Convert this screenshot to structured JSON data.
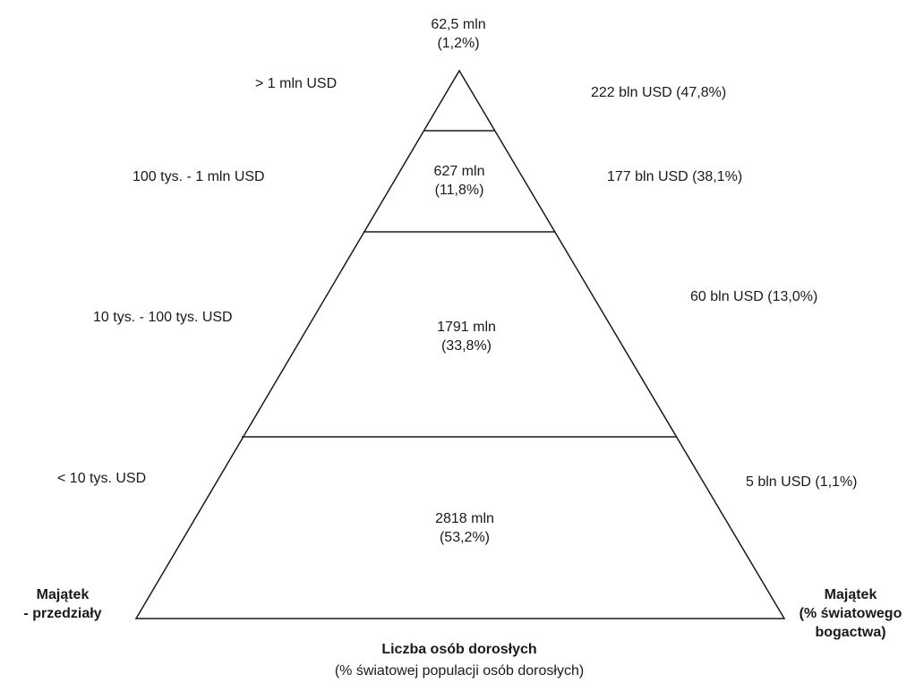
{
  "pyramid": {
    "tiers": [
      {
        "range": "> 1 mln USD",
        "people": "62,5 mln",
        "people_pct": "(1,2%)",
        "wealth": "222 bln USD (47,8%)"
      },
      {
        "range": "100 tys. - 1 mln USD",
        "people": "627 mln",
        "people_pct": "(11,8%)",
        "wealth": "177 bln USD (38,1%)"
      },
      {
        "range": "10 tys. - 100 tys. USD",
        "people": "1791 mln",
        "people_pct": "(33,8%)",
        "wealth": "60 bln USD (13,0%)"
      },
      {
        "range": "< 10 tys. USD",
        "people": "2818 mln",
        "people_pct": "(53,2%)",
        "wealth": "5 bln USD (1,1%)"
      }
    ]
  },
  "labels": {
    "left_title_1": "Majątek",
    "left_title_2": "- przedziały",
    "right_title_1": "Majątek",
    "right_title_2": "(% światowego",
    "right_title_3": "bogactwa)",
    "bottom_title": "Liczba osób dorosłych",
    "bottom_subtitle": "(% światowej populacji osób dorosłych)"
  },
  "colors": {
    "stroke": "#1a1a1a",
    "fill": "#ffffff"
  }
}
